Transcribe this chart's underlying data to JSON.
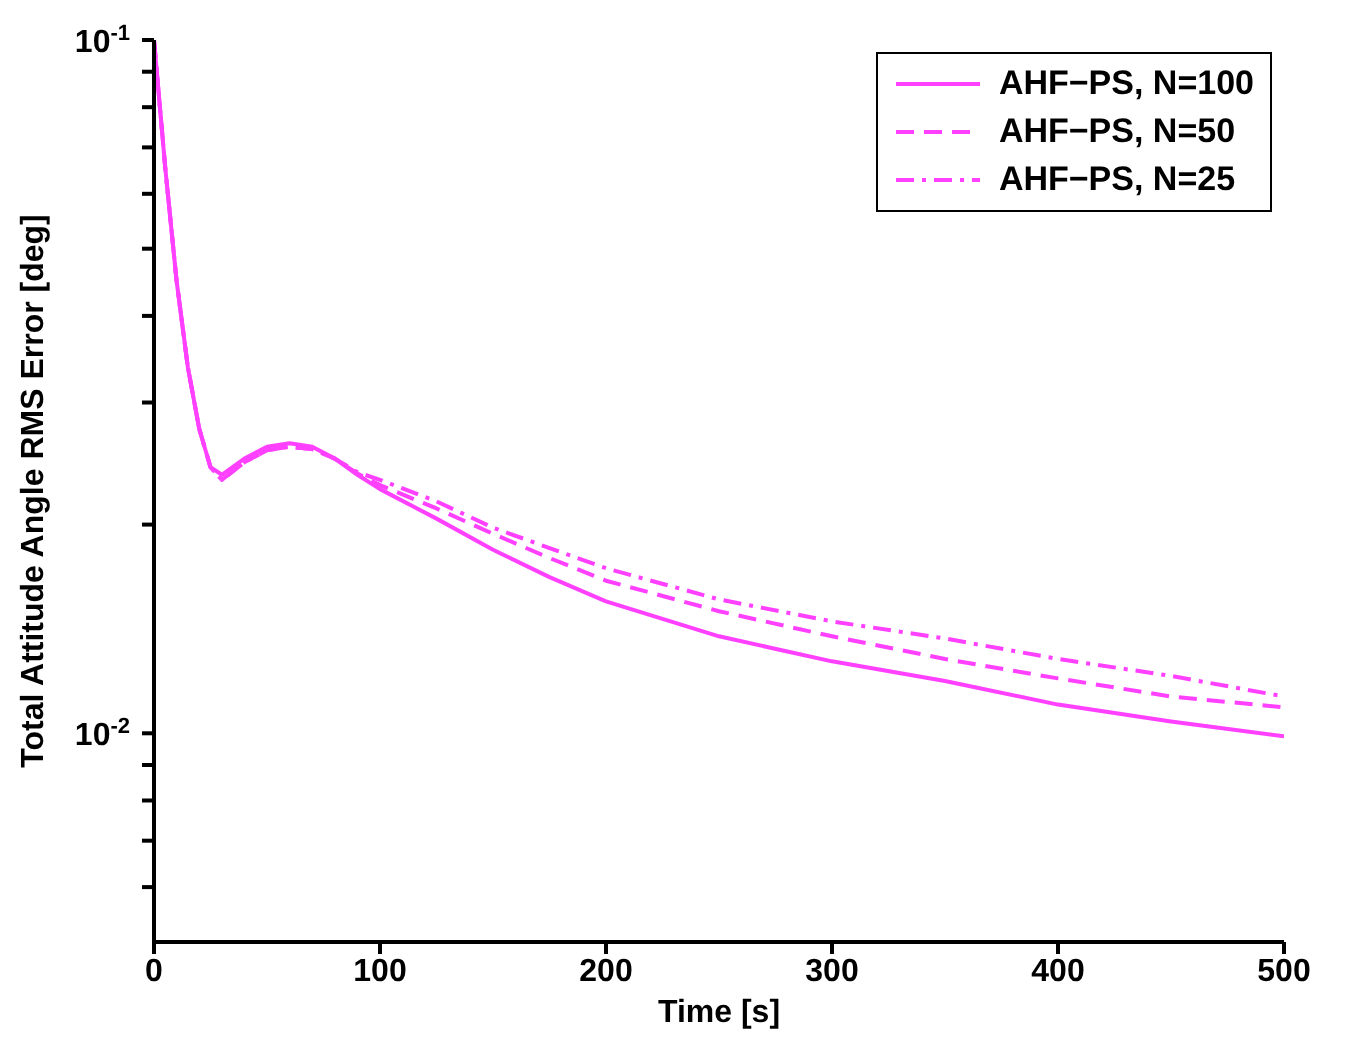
{
  "chart_data": {
    "type": "line",
    "xlabel": "Time [s]",
    "ylabel": "Total Attitude Angle RMS Error [deg]",
    "log": "y",
    "legend": "top right",
    "grid": false,
    "marker": "none",
    "xlim": [
      0,
      500
    ],
    "xticks": [
      0,
      100,
      200,
      300,
      400,
      500
    ],
    "ylim": [
      0.005,
      0.1
    ],
    "yticks": [
      {
        "value": 0.006,
        "label": null
      },
      {
        "value": 0.007,
        "label": null
      },
      {
        "value": 0.008,
        "label": null
      },
      {
        "value": 0.009,
        "label": null
      },
      {
        "value": 0.01,
        "label": "10$^{-2}$"
      },
      {
        "value": 0.02,
        "label": null
      },
      {
        "value": 0.03,
        "label": null
      },
      {
        "value": 0.04,
        "label": null
      },
      {
        "value": 0.05,
        "label": null
      },
      {
        "value": 0.06,
        "label": null
      },
      {
        "value": 0.07,
        "label": null
      },
      {
        "value": 0.08,
        "label": null
      },
      {
        "value": 0.09,
        "label": null
      },
      {
        "value": 0.1,
        "label": "10$^{-1}$"
      }
    ],
    "x": [
      0,
      5,
      10,
      15,
      20,
      25,
      30,
      40,
      50,
      60,
      70,
      80,
      90,
      100,
      125,
      150,
      175,
      200,
      250,
      300,
      350,
      400,
      450,
      500
    ],
    "series": [
      {
        "name": "AHF−PS, N=100",
        "color": "#ff40ff",
        "line_style": "solid",
        "values": [
          0.1,
          0.0653,
          0.0449,
          0.0337,
          0.0275,
          0.0242,
          0.0236,
          0.0249,
          0.0259,
          0.0262,
          0.0259,
          0.0249,
          0.0236,
          0.0225,
          0.0204,
          0.0184,
          0.0168,
          0.0155,
          0.0138,
          0.0127,
          0.0119,
          0.011,
          0.0104,
          0.0099
        ]
      },
      {
        "name": "AHF−PS, N=50",
        "color": "#ff40ff",
        "line_style": "dashed",
        "values": [
          0.1,
          0.0653,
          0.0449,
          0.0337,
          0.0275,
          0.0242,
          0.0232,
          0.0246,
          0.0256,
          0.0259,
          0.0257,
          0.0249,
          0.0237,
          0.0228,
          0.0211,
          0.0194,
          0.0179,
          0.0166,
          0.015,
          0.0138,
          0.0128,
          0.012,
          0.0113,
          0.0109
        ]
      },
      {
        "name": "AHF−PS, N=25",
        "color": "#ff40ff",
        "line_style": "dashdot",
        "values": [
          0.1,
          0.0653,
          0.0449,
          0.0337,
          0.0275,
          0.0242,
          0.0232,
          0.0246,
          0.0256,
          0.0259,
          0.0257,
          0.0249,
          0.0238,
          0.0232,
          0.0216,
          0.0198,
          0.0185,
          0.0173,
          0.0156,
          0.0145,
          0.0137,
          0.0128,
          0.0121,
          0.0113
        ]
      }
    ]
  }
}
